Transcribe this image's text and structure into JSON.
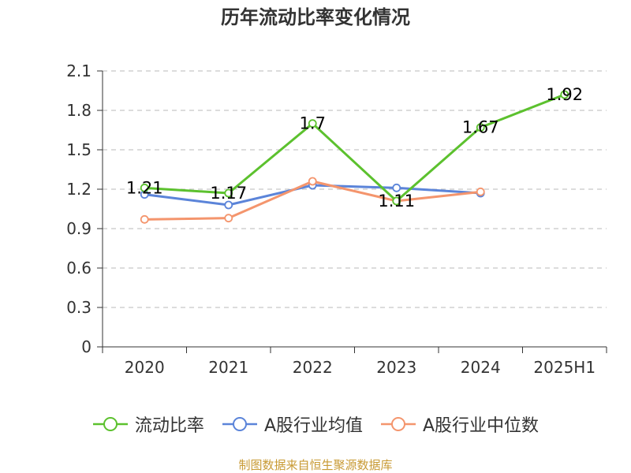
{
  "chart_data": {
    "type": "line",
    "title": "历年流动比率变化情况",
    "categories": [
      "2020",
      "2021",
      "2022",
      "2023",
      "2024",
      "2025H1"
    ],
    "ylim": [
      0,
      2.1
    ],
    "yticks": [
      "0",
      "0.3",
      "0.6",
      "0.9",
      "1.2",
      "1.5",
      "1.8",
      "2.1"
    ],
    "grid": true,
    "legend_position": "bottom",
    "series": [
      {
        "name": "A股行业均值",
        "color": "#5b84d9",
        "values": [
          1.16,
          1.08,
          1.23,
          1.21,
          1.17,
          null
        ],
        "labels": [
          "",
          "",
          "",
          "",
          "",
          ""
        ]
      },
      {
        "name": "A股行业中位数",
        "color": "#f4956d",
        "values": [
          0.97,
          0.98,
          1.26,
          1.11,
          1.18,
          null
        ],
        "labels": [
          "",
          "",
          "",
          "",
          "",
          ""
        ]
      },
      {
        "name": "流动比率",
        "color": "#5cc12e",
        "values": [
          1.21,
          1.17,
          1.7,
          1.11,
          1.67,
          1.92
        ],
        "labels": [
          "1.21",
          "1.17",
          "1.7",
          "1.11",
          "1.67",
          "1.92"
        ]
      }
    ],
    "legend": [
      "流动比率",
      "A股行业均值",
      "A股行业中位数"
    ],
    "source": "制图数据来自恒生聚源数据库",
    "source_color": "#c89a34"
  }
}
